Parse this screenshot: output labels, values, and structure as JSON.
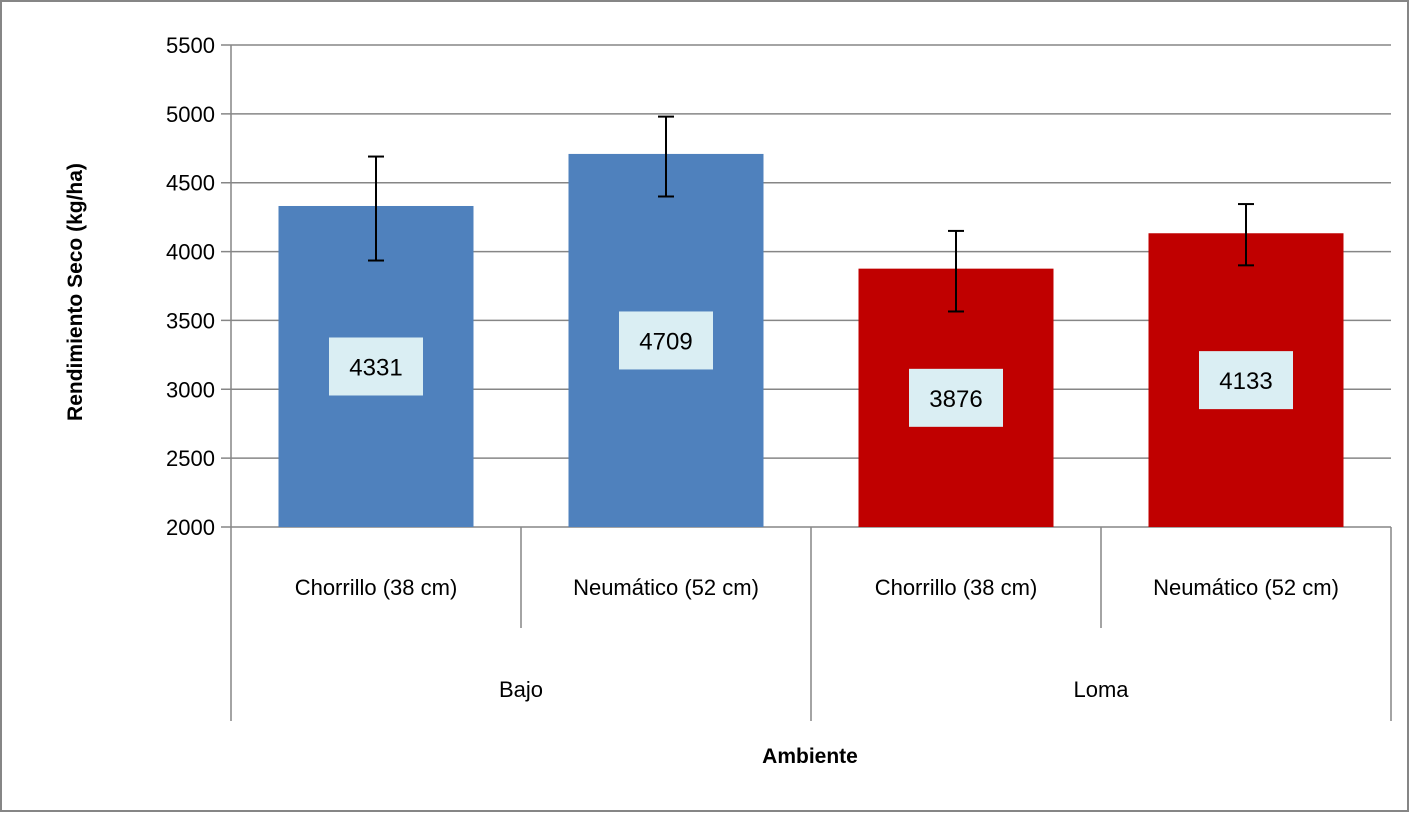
{
  "chart_data": {
    "type": "bar",
    "title": "",
    "xlabel": "Ambiente",
    "ylabel": "Rendimiento Seco (kg/ha)",
    "ylim": [
      2000,
      5500
    ],
    "yticks": [
      2000,
      2500,
      3000,
      3500,
      4000,
      4500,
      5000,
      5500
    ],
    "grid": true,
    "legend": "none",
    "groups": [
      {
        "label": "Bajo",
        "color": "#4F81BD"
      },
      {
        "label": "Loma",
        "color": "#C00000"
      }
    ],
    "bars": [
      {
        "group": "Bajo",
        "category": "Chorrillo (38 cm)",
        "value": 4331,
        "label": "4331",
        "err_low": 3935,
        "err_high": 4690
      },
      {
        "group": "Bajo",
        "category": "Neumático (52 cm)",
        "value": 4709,
        "label": "4709",
        "err_low": 4400,
        "err_high": 4980
      },
      {
        "group": "Loma",
        "category": "Chorrillo (38 cm)",
        "value": 3876,
        "label": "3876",
        "err_low": 3565,
        "err_high": 4150
      },
      {
        "group": "Loma",
        "category": "Neumático (52 cm)",
        "value": 4133,
        "label": "4133",
        "err_low": 3900,
        "err_high": 4345
      }
    ],
    "colors": {
      "data_label_bg": "#DAEEF3",
      "grid": "#868686",
      "border": "#868686"
    }
  }
}
